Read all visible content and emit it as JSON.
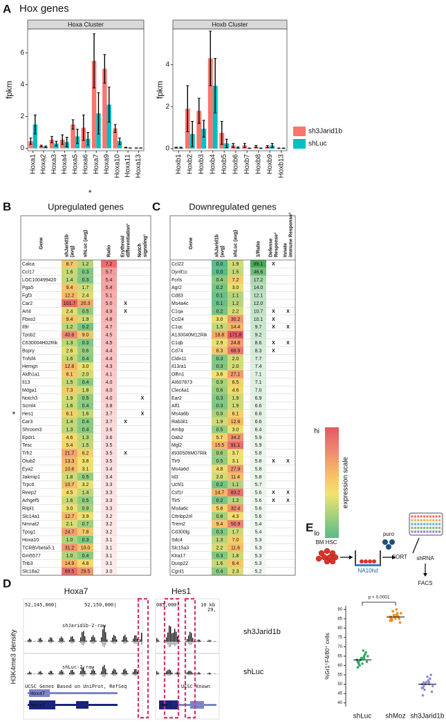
{
  "chart_data": [
    {
      "type": "bar",
      "panel_label": "A",
      "title": "Hox genes",
      "strip": "Hoxa Cluster",
      "y_label": "fpkm",
      "categories": [
        "Hoxa1",
        "Hoxa2",
        "Hoxa3",
        "Hoxa4",
        "Hoxa5",
        "Hoxa6",
        "Hoxa7",
        "Hoxa9",
        "Hoxa10",
        "Hoxa11",
        "Hoxa13"
      ],
      "series": [
        {
          "color": "#F8766D",
          "values": [
            0.45,
            0.15,
            0.55,
            0.55,
            1.5,
            1.3,
            5.5,
            5.0,
            1.25,
            0.05,
            0.02
          ],
          "errors": [
            0.2,
            0.05,
            0.2,
            0.3,
            0.3,
            0.8,
            1.7,
            0.9,
            0.25,
            0.02,
            0.01
          ]
        },
        {
          "color": "#00BFC4",
          "values": [
            1.5,
            0.1,
            0.3,
            0.4,
            0.75,
            0.6,
            2.2,
            2.75,
            0.45,
            0.02,
            0.02
          ],
          "errors": [
            0.6,
            0.05,
            0.15,
            0.3,
            0.45,
            0.4,
            1.3,
            1.1,
            0.2,
            0.01,
            0.01
          ]
        }
      ],
      "ylim": [
        -0.15,
        7.5
      ],
      "yticks": [
        0,
        2,
        4,
        6
      ],
      "marker": "*",
      "marked_category": "Hoxa7"
    },
    {
      "type": "bar",
      "strip": "Hoxb Cluster",
      "y_label": "fpkm",
      "categories": [
        "Hoxb1",
        "Hoxb2",
        "Hoxb3",
        "Hoxb4",
        "Hoxb5",
        "Hoxb6",
        "Hoxb7",
        "Hoxb8",
        "Hoxb9",
        "Hoxb13"
      ],
      "series": [
        {
          "name": "sh3Jarid1b",
          "color": "#F8766D",
          "values": [
            0.05,
            1.9,
            1.8,
            4.3,
            0.75,
            0.15,
            0.15,
            0.1,
            0.1,
            0.02
          ],
          "errors": [
            0.02,
            1.1,
            0.6,
            1.3,
            0.55,
            0.1,
            0.1,
            0.05,
            0.05,
            0.01
          ]
        },
        {
          "name": "shLuc",
          "color": "#00BFC4",
          "values": [
            0.05,
            0.7,
            0.95,
            3.0,
            0.25,
            0.05,
            0.02,
            0.02,
            0.15,
            0.02
          ],
          "errors": [
            0.02,
            0.6,
            0.4,
            1.3,
            0.2,
            0.03,
            0.01,
            0.01,
            0.1,
            0.01
          ]
        }
      ],
      "ylim": [
        -0.1,
        5.7
      ],
      "yticks": [
        0,
        2,
        4
      ],
      "legend": "right"
    },
    {
      "type": "dot",
      "panel_label": "E",
      "y_label": "%Gr1⁺F4/80⁺ cells",
      "categories": [
        "shLuc",
        "shMoz",
        "sh3Jarid1b"
      ],
      "groups": [
        {
          "color": "#2eaa62",
          "values": [
            63,
            64,
            62,
            65,
            61,
            66,
            60,
            67,
            63,
            62,
            64,
            65,
            61,
            63,
            68,
            59,
            64,
            62
          ],
          "mean": 63
        },
        {
          "color": "#f08c1e",
          "values": [
            86,
            87,
            85,
            88,
            84,
            86,
            89,
            85,
            87,
            83,
            86,
            88,
            85,
            84,
            90,
            86,
            87,
            85
          ],
          "mean": 86
        },
        {
          "color": "#8c8cd9",
          "values": [
            50,
            52,
            48,
            51,
            49,
            53,
            47,
            55,
            50,
            46,
            51,
            49,
            54,
            48,
            52,
            44,
            50,
            51
          ],
          "mean": 50
        }
      ],
      "ylim": [
        38,
        92
      ],
      "yticks": [
        40,
        45,
        50,
        55,
        60,
        65,
        70,
        75,
        80,
        85,
        90
      ],
      "annotation": "p < 0.0001",
      "bracket": [
        "shLuc",
        "shMoz"
      ]
    }
  ],
  "tables": {
    "B": {
      "label": "B",
      "title": "Upregulated genes",
      "columns": [
        "Gene",
        "shJarid1b (avg)",
        "shLuc (avg)",
        "Ratio",
        "Erythroid differentiation¹",
        "Notch signaling¹"
      ],
      "ratio_colors": [
        "#fdecec",
        "#f06b6b"
      ],
      "row_marker": "*",
      "marked_gene": "Hes1",
      "rows": [
        [
          "Calca",
          "8.7",
          "1.2",
          "7.2",
          null,
          null
        ],
        [
          "Ccl17",
          "1.6",
          "0.3",
          "5.7",
          null,
          null
        ],
        [
          "LOC100499420",
          "1.4",
          "0.3",
          "5.4",
          null,
          null
        ],
        [
          "Pga5",
          "9.4",
          "1.7",
          "5.4",
          null,
          null
        ],
        [
          "Fgf3",
          "12.2",
          "2.4",
          "5.1",
          null,
          null
        ],
        [
          "Car2",
          "101.7",
          "20.3",
          "5.0",
          "X",
          null
        ],
        [
          "Art4",
          "2.4",
          "0.5",
          "4.9",
          "X",
          null
        ],
        [
          "Fbxo2",
          "9.4",
          "1.9",
          "4.8",
          null,
          null
        ],
        [
          "Il9r",
          "1.2",
          "0.2",
          "4.7",
          null,
          null
        ],
        [
          "Tpsb2",
          "40.8",
          "9.0",
          "4.5",
          null,
          null
        ],
        [
          "C630004H02Rik",
          "1.3",
          "0.3",
          "4.5",
          null,
          null
        ],
        [
          "Bspry",
          "2.6",
          "0.6",
          "4.4",
          null,
          null
        ],
        [
          "Tnfsf4",
          "1.6",
          "0.4",
          "4.4",
          null,
          null
        ],
        [
          "Hemgn",
          "12.8",
          "3.0",
          "4.3",
          null,
          null
        ],
        [
          "Aldh1a1",
          "8.1",
          "2.0",
          "4.1",
          null,
          null
        ],
        [
          "Il13",
          "1.5",
          "0.4",
          "4.0",
          null,
          null
        ],
        [
          "Mdga1",
          "7.3",
          "1.8",
          "4.0",
          null,
          null
        ],
        [
          "Notch3",
          "1.9",
          "0.5",
          "4.0",
          null,
          "X"
        ],
        [
          "Scml4",
          "1.6",
          "0.4",
          "3.8",
          null,
          null
        ],
        [
          "Hes1",
          "6.1",
          "1.6",
          "3.7",
          null,
          "X"
        ],
        [
          "Car3",
          "1.4",
          "0.4",
          "3.7",
          "X",
          null
        ],
        [
          "Shroom3",
          "1.3",
          "0.4",
          "3.6",
          null,
          null
        ],
        [
          "Epdr1",
          "4.6",
          "1.3",
          "3.6",
          null,
          null
        ],
        [
          "Tesc",
          "5.4",
          "1.5",
          "3.5",
          null,
          null
        ],
        [
          "Trfr2",
          "21.7",
          "6.2",
          "3.5",
          "X",
          null
        ],
        [
          "Otub2",
          "13.3",
          "3.8",
          "3.5",
          null,
          null
        ],
        [
          "Eya2",
          "10.6",
          "3.1",
          "3.4",
          null,
          null
        ],
        [
          "Jakmip1",
          "1.8",
          "0.5",
          "3.4",
          null,
          null
        ],
        [
          "Trpc6",
          "10.7",
          "3.2",
          "3.3",
          null,
          null
        ],
        [
          "Reep2",
          "4.5",
          "1.4",
          "3.3",
          null,
          null
        ],
        [
          "Arhgef5",
          "1.6",
          "0.5",
          "3.3",
          null,
          null
        ],
        [
          "Riipl1",
          "3.0",
          "0.9",
          "3.3",
          null,
          null
        ],
        [
          "Slc14a1",
          "12.7",
          "3.9",
          "3.2",
          null,
          null
        ],
        [
          "Nmnat2",
          "2.1",
          "0.7",
          "3.2",
          null,
          null
        ],
        [
          "Tpsg1",
          "24.7",
          "7.8",
          "3.2",
          null,
          null
        ],
        [
          "Hoxa10",
          "1.0",
          "0.3",
          "3.1",
          null,
          null
        ],
        [
          "TCRBVbeta5.1",
          "31.2",
          "10.0",
          "3.1",
          null,
          null
        ],
        [
          "Gm5577",
          "1.0",
          "0.4",
          "3.1",
          null,
          null
        ],
        [
          "Trib3",
          "14.9",
          "4.8",
          "3.1",
          null,
          null
        ],
        [
          "Slc18a2",
          "89.5",
          "29.5",
          "3.0",
          null,
          null
        ]
      ]
    },
    "C": {
      "label": "C",
      "title": "Downregulated genes",
      "columns": [
        "Gene",
        "shJarid1b (avg)",
        "shLuc (avg)",
        "1/Ratio",
        "Defense Response²",
        "Innate immune Response³"
      ],
      "ratio_colors": [
        "#f1f8f1",
        "#4aaa5a"
      ],
      "rows": [
        [
          "Ccl22",
          "0.0",
          "1.9",
          "89.1",
          "X",
          null
        ],
        [
          "Dynlt1c",
          "0.0",
          "1.5",
          "46.6",
          null,
          null
        ],
        [
          "Fcrls",
          "0.4",
          "7.2",
          "17.2",
          null,
          null
        ],
        [
          "Agr2",
          "0.2",
          "3.0",
          "14.0",
          null,
          null
        ],
        [
          "Cd83",
          "0.1",
          "1.1",
          "12.1",
          null,
          null
        ],
        [
          "Ms4a4c",
          "0.1",
          "1.2",
          "12.0",
          null,
          null
        ],
        [
          "C1qa",
          "0.2",
          "2.2",
          "10.7",
          "X",
          "X"
        ],
        [
          "Ccl24",
          "3.0",
          "30.2",
          "10.1",
          "X",
          null
        ],
        [
          "C1qc",
          "1.5",
          "14.4",
          "9.7",
          "X",
          "X"
        ],
        [
          "A130040M12Rik",
          "18.8",
          "171.8",
          "9.2",
          null,
          null
        ],
        [
          "C1qb",
          "2.9",
          "24.8",
          "8.6",
          "X",
          "X"
        ],
        [
          "Cd74",
          "8.3",
          "68.9",
          "8.3",
          "X",
          null
        ],
        [
          "Cldn11",
          "0.3",
          "2.0",
          "7.7",
          null,
          null
        ],
        [
          "Il13ra1",
          "0.3",
          "2.0",
          "7.4",
          null,
          null
        ],
        [
          "Olfm1",
          "3.8",
          "27.1",
          "7.1",
          null,
          null
        ],
        [
          "AI607873",
          "0.9",
          "6.5",
          "7.1",
          null,
          null
        ],
        [
          "Clec4a1",
          "0.6",
          "4.6",
          "7.0",
          null,
          null
        ],
        [
          "Ear2",
          "0.3",
          "1.9",
          "6.9",
          null,
          null
        ],
        [
          "Alf1",
          "0.3",
          "1.9",
          "6.6",
          null,
          null
        ],
        [
          "Ms4a6b",
          "0.9",
          "6.1",
          "6.6",
          null,
          null
        ],
        [
          "Rab3il1",
          "1.9",
          "12.6",
          "6.6",
          null,
          null
        ],
        [
          "Ambp",
          "0.5",
          "3.0",
          "6.4",
          null,
          null
        ],
        [
          "Dab2",
          "5.7",
          "34.2",
          "5.9",
          null,
          null
        ],
        [
          "Mgl2",
          "15.5",
          "91.1",
          "5.9",
          null,
          null
        ],
        [
          "4930506M07Rik",
          "0.6",
          "3.7",
          "5.8",
          null,
          null
        ],
        [
          "Tlr9",
          "0.5",
          "3.1",
          "5.8",
          "X",
          "X"
        ],
        [
          "Ms4a6d",
          "4.8",
          "27.9",
          "5.8",
          null,
          null
        ],
        [
          "Id3",
          "2.0",
          "11.4",
          "5.8",
          null,
          null
        ],
        [
          "Uchl1",
          "0.2",
          "1.1",
          "5.7",
          null,
          null
        ],
        [
          "Csf1r",
          "14.7",
          "83.2",
          "5.6",
          "X",
          "X"
        ],
        [
          "Tlr5",
          "0.2",
          "1.2",
          "5.6",
          "X",
          "X"
        ],
        [
          "Ms4a6c",
          "5.8",
          "32.4",
          "5.6",
          null,
          null
        ],
        [
          "Cttnbp2nl",
          "0.8",
          "4.3",
          "5.6",
          null,
          null
        ],
        [
          "Trem2",
          "9.4",
          "50.9",
          "5.4",
          null,
          null
        ],
        [
          "Cd300lg",
          "0.3",
          "1.7",
          "5.4",
          null,
          null
        ],
        [
          "Sdc4",
          "1.3",
          "7.0",
          "5.3",
          null,
          null
        ],
        [
          "Slc15a3",
          "2.2",
          "11.6",
          "5.3",
          null,
          null
        ],
        [
          "Klra17",
          "0.3",
          "1.8",
          "5.3",
          null,
          null
        ],
        [
          "Dusp22",
          "1.6",
          "8.4",
          "5.3",
          null,
          null
        ],
        [
          "Cgnl1",
          "0.4",
          "2.3",
          "5.2",
          null,
          null
        ]
      ]
    }
  },
  "expression_scale": {
    "hi": "hi",
    "lo": "lo",
    "title": "expression scale",
    "colors": [
      "#57bb8a",
      "#a2d17c",
      "#f3e36d",
      "#f7b866",
      "#ef8472",
      "#e05a66"
    ]
  },
  "browser": {
    "label": "D",
    "y_label": "H3K4me3 density",
    "loci": [
      "Hoxa7",
      "Hes1"
    ],
    "tracks": [
      "sh3Jarid1b",
      "shLuc"
    ],
    "coords": [
      "52,145,000|",
      "52,150,000|",
      "10 kb",
      "085,000|",
      "29,"
    ],
    "track_names": [
      "shJarid1b-2-raw",
      "shLuc-2-raw"
    ],
    "gene_tracks": [
      "UCSC Genes Based on UniProt, RefSeq",
      "UCSC Known"
    ],
    "genes": [
      "Hoxa7",
      "Hoxa7",
      "Hes1"
    ]
  },
  "schematic": {
    "steps": [
      "BM HSC",
      "NA10hd",
      "puro",
      "SORT",
      "shRNA",
      "FACS"
    ]
  }
}
